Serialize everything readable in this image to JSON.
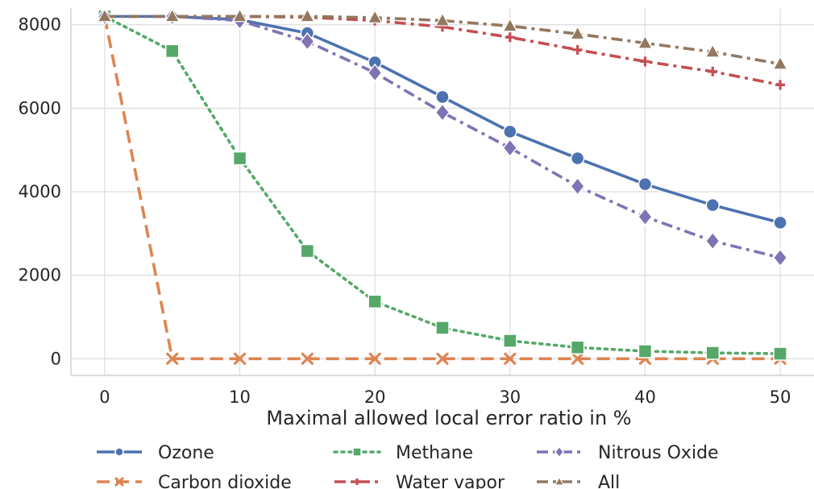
{
  "chart_data": {
    "type": "line",
    "title": "",
    "xlabel": "Maximal allowed local error ratio in %",
    "ylabel": "",
    "x": [
      0,
      5,
      10,
      15,
      20,
      25,
      30,
      35,
      40,
      45,
      50
    ],
    "xlim": [
      -2.5,
      52.5
    ],
    "ylim": [
      -400,
      8400
    ],
    "xticks": [
      0,
      10,
      20,
      30,
      40,
      50
    ],
    "yticks": [
      0,
      2000,
      4000,
      6000,
      8000
    ],
    "grid": true,
    "legend_position": "bottom",
    "series": [
      {
        "name": "Ozone",
        "color": "#4c72b0",
        "dash": "solid",
        "marker": "circle",
        "values": [
          8200,
          8200,
          8120,
          7800,
          7100,
          6270,
          5440,
          4800,
          4180,
          3680,
          3260
        ]
      },
      {
        "name": "Carbon dioxide",
        "color": "#dd8452",
        "dash": "dashed",
        "marker": "x",
        "values": [
          8200,
          0,
          0,
          0,
          0,
          0,
          0,
          0,
          0,
          0,
          0
        ]
      },
      {
        "name": "Methane",
        "color": "#55a868",
        "dash": "dotted",
        "marker": "square",
        "values": [
          8200,
          7370,
          4800,
          2580,
          1370,
          740,
          430,
          270,
          180,
          140,
          120
        ]
      },
      {
        "name": "Water vapor",
        "color": "#c44e52",
        "dash": "dashdot",
        "marker": "plus",
        "values": [
          8200,
          8200,
          8200,
          8180,
          8100,
          7950,
          7700,
          7400,
          7120,
          6880,
          6560
        ]
      },
      {
        "name": "Nitrous Oxide",
        "color": "#8172b3",
        "dash": "dashdot",
        "marker": "diamond",
        "values": [
          8200,
          8200,
          8100,
          7600,
          6850,
          5900,
          5050,
          4130,
          3400,
          2820,
          2420
        ]
      },
      {
        "name": "All",
        "color": "#937860",
        "dash": "dashdot",
        "marker": "triangle",
        "values": [
          8200,
          8200,
          8200,
          8200,
          8170,
          8100,
          7970,
          7780,
          7560,
          7350,
          7060
        ]
      }
    ]
  }
}
